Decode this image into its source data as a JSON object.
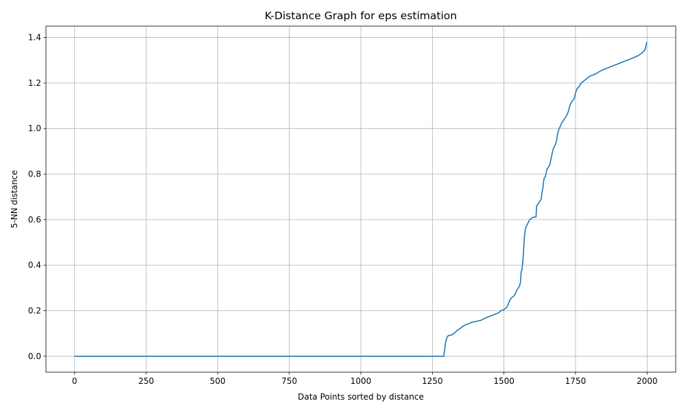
{
  "chart_data": {
    "type": "line",
    "title": "K-Distance Graph for eps estimation",
    "xlabel": "Data Points sorted by distance",
    "ylabel": "5-NN distance",
    "xlim": [
      -100,
      2100
    ],
    "ylim": [
      -0.07,
      1.45
    ],
    "xticks": [
      0,
      250,
      500,
      750,
      1000,
      1250,
      1500,
      1750,
      2000
    ],
    "xtick_labels": [
      "0",
      "250",
      "500",
      "750",
      "1000",
      "1250",
      "1500",
      "1750",
      "2000"
    ],
    "yticks": [
      0.0,
      0.2,
      0.4,
      0.6,
      0.8,
      1.0,
      1.2,
      1.4
    ],
    "ytick_labels": [
      "0.0",
      "0.2",
      "0.4",
      "0.6",
      "0.8",
      "1.0",
      "1.2",
      "1.4"
    ],
    "grid": true,
    "series": [
      {
        "color": "#1f77b4",
        "x": [
          0,
          1290,
          1291,
          1294,
          1296,
          1300,
          1305,
          1320,
          1330,
          1335,
          1345,
          1355,
          1365,
          1375,
          1380,
          1390,
          1400,
          1420,
          1430,
          1440,
          1460,
          1480,
          1490,
          1500,
          1510,
          1515,
          1520,
          1525,
          1535,
          1540,
          1545,
          1550,
          1555,
          1558,
          1560,
          1563,
          1566,
          1568,
          1570,
          1572,
          1575,
          1578,
          1582,
          1590,
          1600,
          1612,
          1614,
          1620,
          1625,
          1630,
          1633,
          1636,
          1640,
          1645,
          1650,
          1655,
          1660,
          1665,
          1670,
          1675,
          1680,
          1684,
          1688,
          1690,
          1693,
          1697,
          1700,
          1710,
          1720,
          1725,
          1730,
          1735,
          1745,
          1750,
          1755,
          1760,
          1770,
          1780,
          1790,
          1800,
          1820,
          1840,
          1860,
          1880,
          1900,
          1920,
          1940,
          1960,
          1975,
          1985,
          1992,
          1995,
          1997,
          1999
        ],
        "y": [
          0.0,
          0.0,
          0.01,
          0.04,
          0.06,
          0.08,
          0.09,
          0.095,
          0.105,
          0.112,
          0.12,
          0.13,
          0.138,
          0.142,
          0.145,
          0.15,
          0.152,
          0.158,
          0.165,
          0.17,
          0.18,
          0.19,
          0.2,
          0.205,
          0.215,
          0.23,
          0.245,
          0.255,
          0.265,
          0.275,
          0.29,
          0.3,
          0.31,
          0.33,
          0.37,
          0.38,
          0.42,
          0.45,
          0.5,
          0.53,
          0.56,
          0.57,
          0.58,
          0.6,
          0.61,
          0.612,
          0.66,
          0.67,
          0.68,
          0.69,
          0.72,
          0.74,
          0.78,
          0.79,
          0.82,
          0.83,
          0.84,
          0.87,
          0.9,
          0.92,
          0.93,
          0.95,
          0.98,
          0.99,
          1.0,
          1.01,
          1.02,
          1.04,
          1.06,
          1.075,
          1.1,
          1.115,
          1.13,
          1.155,
          1.175,
          1.18,
          1.2,
          1.21,
          1.22,
          1.23,
          1.24,
          1.255,
          1.265,
          1.275,
          1.285,
          1.295,
          1.305,
          1.315,
          1.325,
          1.335,
          1.345,
          1.355,
          1.37,
          1.38
        ]
      }
    ]
  }
}
